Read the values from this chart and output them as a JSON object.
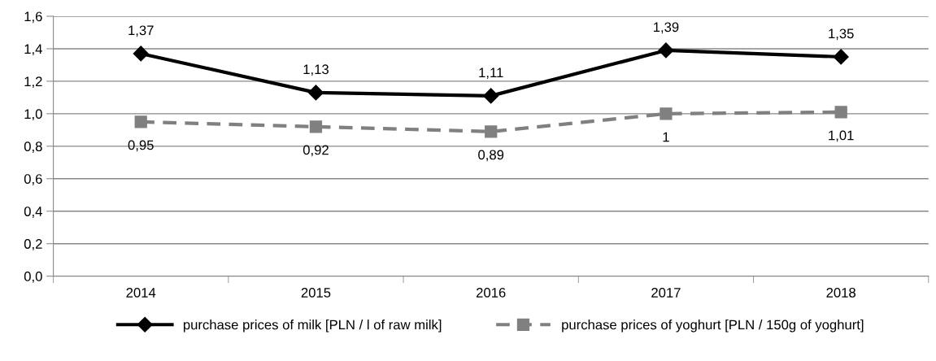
{
  "chart_data": {
    "type": "line",
    "categories": [
      "2014",
      "2015",
      "2016",
      "2017",
      "2018"
    ],
    "series": [
      {
        "name": "purchase prices of milk [PLN / l of raw milk]",
        "color": "#000000",
        "marker": "diamond",
        "line_style": "solid",
        "values": [
          1.37,
          1.13,
          1.11,
          1.39,
          1.35
        ],
        "value_labels": [
          "1,37",
          "1,13",
          "1,11",
          "1,39",
          "1,35"
        ]
      },
      {
        "name": "purchase prices of yoghurt [PLN / 150g of yoghurt]",
        "color": "#808080",
        "marker": "square",
        "line_style": "dashed",
        "values": [
          0.95,
          0.92,
          0.89,
          1.0,
          1.01
        ],
        "value_labels": [
          "0,95",
          "0,92",
          "0,89",
          "1",
          "1,01"
        ]
      }
    ],
    "ylim": [
      0,
      1.6
    ],
    "yticks": [
      {
        "value": 0,
        "label": "0,0"
      },
      {
        "value": 0.2,
        "label": "0,2"
      },
      {
        "value": 0.4,
        "label": "0,4"
      },
      {
        "value": 0.6,
        "label": "0,6"
      },
      {
        "value": 0.8,
        "label": "0,8"
      },
      {
        "value": 1.0,
        "label": "1,0"
      },
      {
        "value": 1.2,
        "label": "1,2"
      },
      {
        "value": 1.4,
        "label": "1,4"
      },
      {
        "value": 1.6,
        "label": "1,6"
      }
    ],
    "grid": "y",
    "legend": "bottom"
  }
}
